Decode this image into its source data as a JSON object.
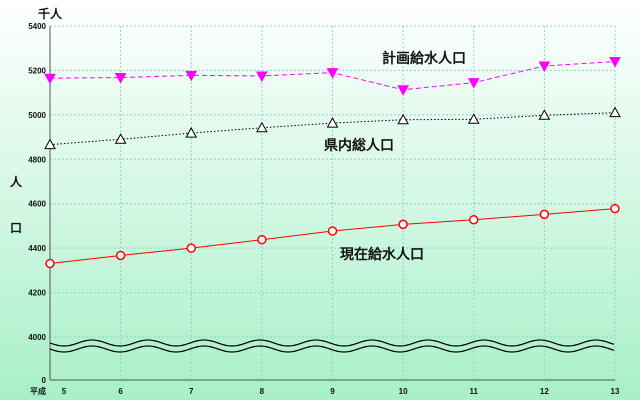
{
  "chart_data": {
    "type": "line",
    "unit_label": "千人",
    "ylabel": "人口",
    "x_prefix": "平成",
    "x": [
      5,
      6,
      7,
      8,
      9,
      10,
      11,
      12,
      13
    ],
    "y_ticks": [
      5400,
      5200,
      5000,
      4800,
      4600,
      4400,
      4200,
      4000,
      0
    ],
    "ylim_upper": [
      4000,
      5400
    ],
    "ylim_lower": [
      0,
      4000
    ],
    "y_axis_break": true,
    "grid": true,
    "series": [
      {
        "name": "計画給水人口",
        "color": "#ff00ff",
        "line_style": "dashed",
        "marker": "filled-down-triangle",
        "values": [
          5165,
          5168,
          5178,
          5175,
          5190,
          5113,
          5145,
          5220,
          5240
        ]
      },
      {
        "name": "県内総人口",
        "color": "#000000",
        "line_style": "dotted",
        "marker": "open-up-triangle",
        "values": [
          4866,
          4890,
          4918,
          4942,
          4963,
          4978,
          4980,
          4998,
          5010
        ]
      },
      {
        "name": "現在給水人口",
        "color": "#ff0000",
        "line_style": "solid",
        "marker": "open-circle",
        "values": [
          4331,
          4367,
          4400,
          4438,
          4477,
          4507,
          4528,
          4552,
          4578
        ]
      }
    ]
  },
  "colors": {
    "background_top": "#ffffff",
    "background_bottom": "#a8f0c8",
    "grid": "#8fd4c4",
    "axis": "#555555"
  }
}
